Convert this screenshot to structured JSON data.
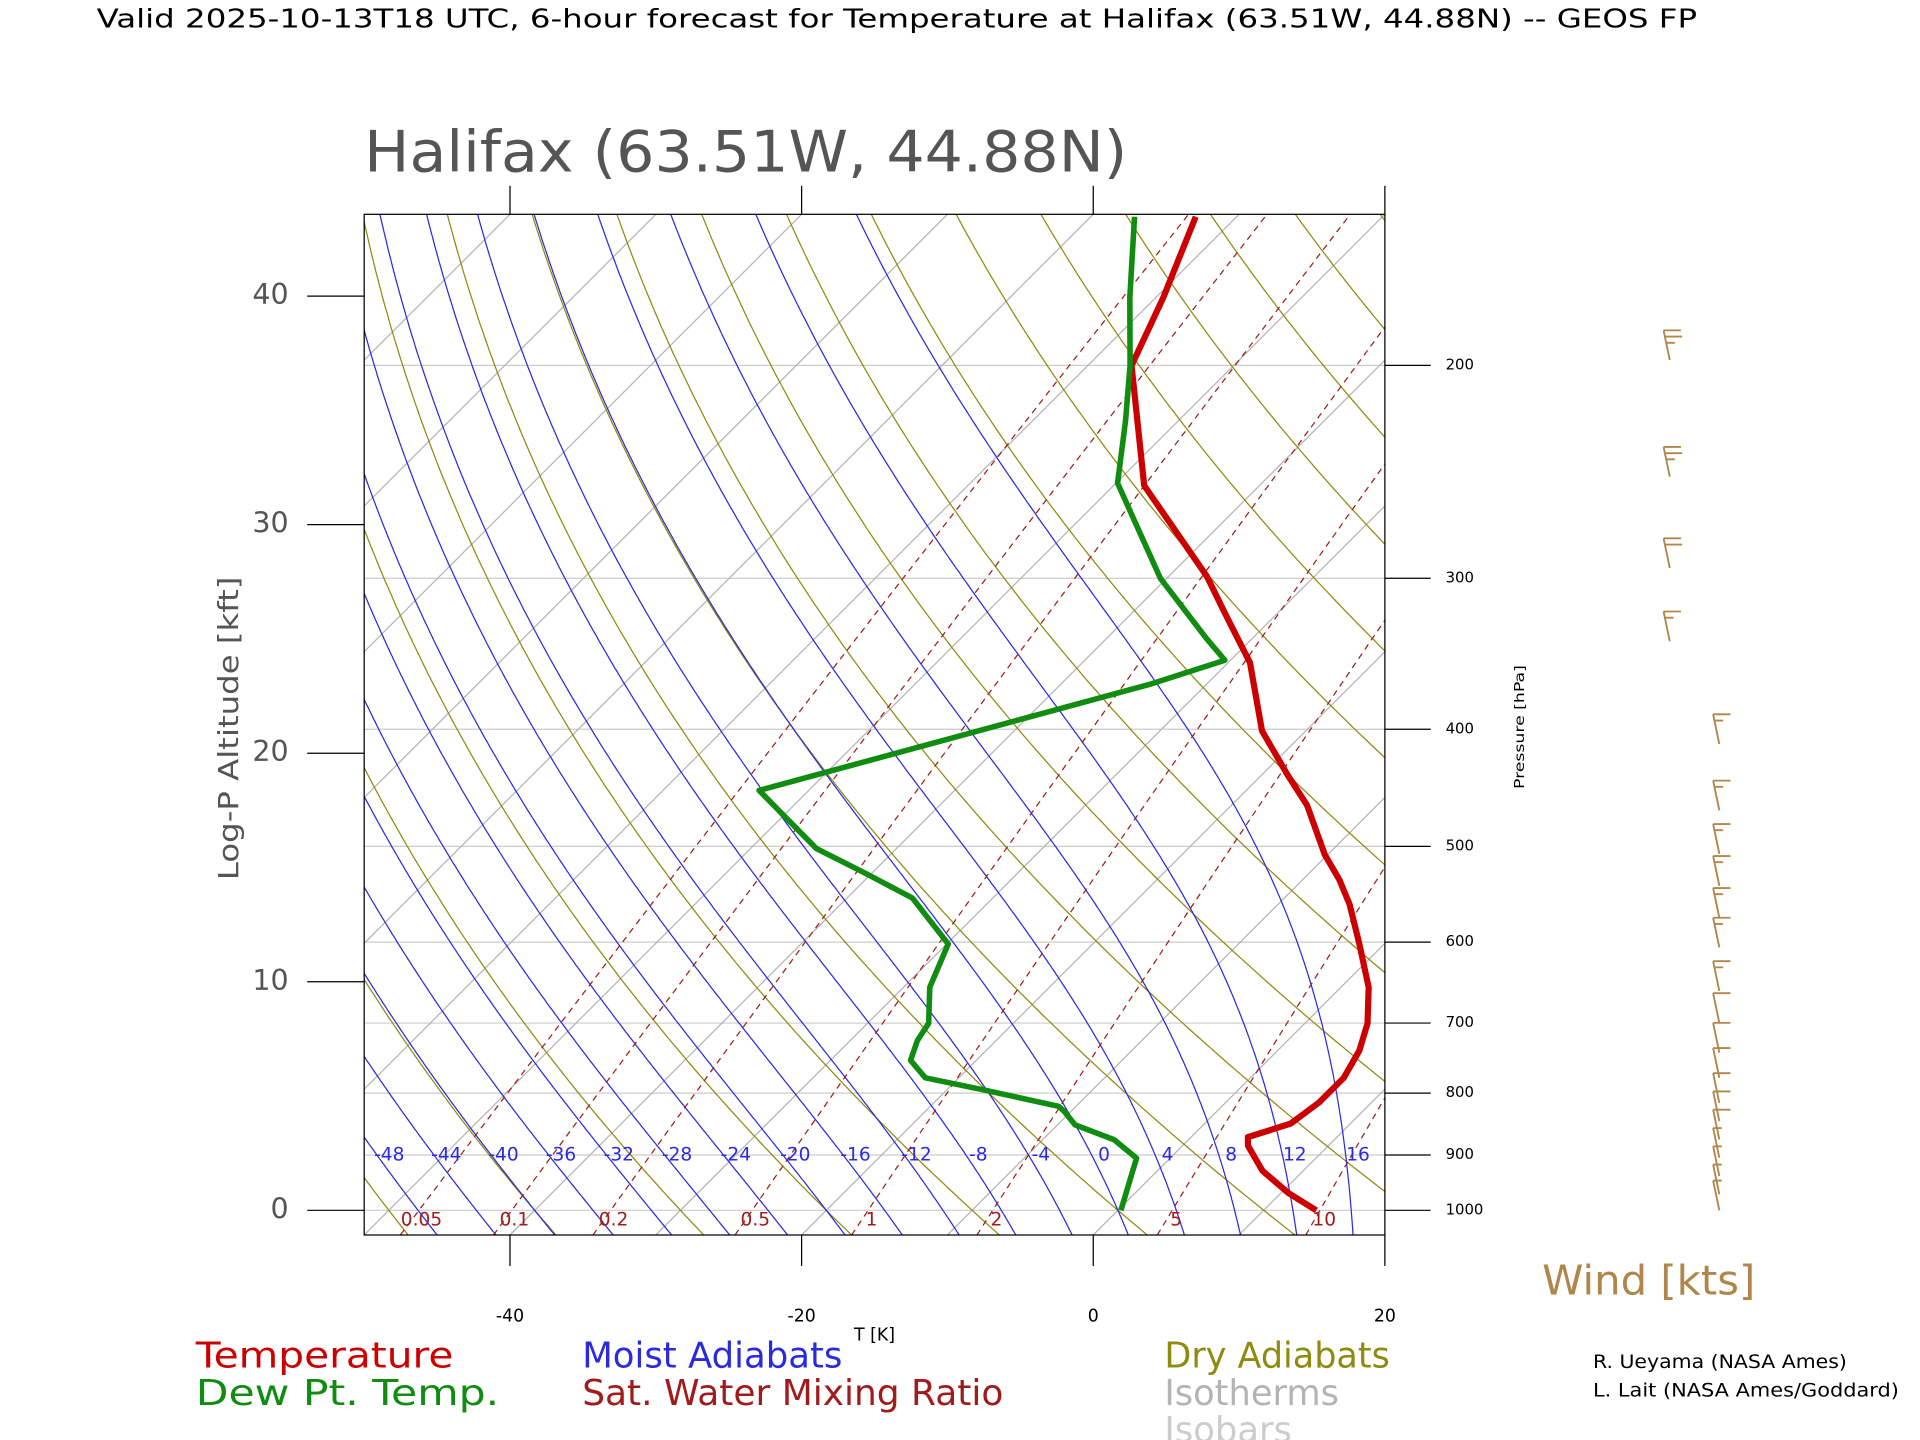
{
  "chart_data": {
    "type": "skewt",
    "title": "Valid 2025-10-13T18 UTC, 6-hour forecast for Temperature at Halifax (63.51W, 44.88N) -- GEOS FP",
    "subtitle": "Halifax (63.51W, 44.88N)",
    "y_label": "Log-P Altitude [kft]",
    "x_label": "T [K]",
    "y2_label": "Pressure [hPa]",
    "xlim": [
      -50,
      20
    ],
    "xticks": [
      -40,
      -20,
      0,
      20
    ],
    "ylim": [
      -1.08,
      43.58
    ],
    "yticks": [
      0,
      10,
      20,
      30,
      40
    ],
    "y2ticks": [
      1000,
      900,
      800,
      700,
      600,
      500,
      400,
      300,
      200
    ],
    "series": [
      {
        "name": "Temperature",
        "color": "#cc0000",
        "altitude": [
          0,
          0.76,
          1.73,
          2.82,
          3.2,
          3.79,
          4.72,
          5.8,
          6.99,
          8.18,
          9.76,
          11.65,
          13.39,
          14.47,
          15.56,
          17.72,
          19.08,
          20.98,
          23.96,
          26.12,
          27.75,
          31.71,
          36.96,
          39.95,
          43.47
        ],
        "values": [
          13.6,
          10.5,
          7.2,
          4.5,
          3.9,
          5.9,
          6.4,
          6.4,
          5.6,
          4.3,
          1.9,
          -1.7,
          -5.1,
          -7.5,
          -10.2,
          -14.8,
          -18.3,
          -23,
          -28.5,
          -33.6,
          -37.4,
          -47.9,
          -57,
          -59.5,
          -62.8
        ]
      },
      {
        "name": "Dew Pt. Temp.",
        "color": "#108c10",
        "altitude": [
          0,
          1.19,
          2.28,
          3.09,
          3.74,
          4.34,
          4.55,
          5.26,
          5.8,
          6.56,
          7.43,
          8.18,
          9.76,
          11.65,
          13.66,
          14.74,
          15.83,
          18.37,
          23.04,
          24.07,
          25.04,
          27.64,
          30.19,
          31.82,
          34.53,
          36.96,
          39.95,
          43.47
        ],
        "values": [
          0.2,
          -1.1,
          -2.3,
          -5.1,
          -8.8,
          -10.5,
          -11.2,
          -17.4,
          -22.3,
          -24.5,
          -25.4,
          -25.8,
          -28.2,
          -29.9,
          -35.5,
          -40.4,
          -45.5,
          -53.4,
          -33.8,
          -30.4,
          -33.2,
          -40.4,
          -46.2,
          -49.9,
          -53.6,
          -57.1,
          -61.8,
          -67
        ]
      }
    ],
    "reference_lines": [
      {
        "name": "Moist Adiabats",
        "color": "#2a2ae0",
        "labels": [
          -48,
          -44,
          -40,
          -36,
          -32,
          -28,
          -24,
          -20,
          -16,
          -12,
          -8,
          -4,
          0,
          4,
          8,
          12,
          16
        ]
      },
      {
        "name": "Sat. Water Mixing Ratio",
        "color": "#a01c1c",
        "labels": [
          0.05,
          0.1,
          0.2,
          0.5,
          1,
          2,
          5,
          10
        ]
      },
      {
        "name": "Dry Adiabats",
        "color": "#8f8a10"
      },
      {
        "name": "Isotherms",
        "color": "#b4b4b4"
      },
      {
        "name": "Isobars",
        "color": "#cccccc"
      }
    ],
    "wind": {
      "name": "Wind [kts]",
      "color": "#b0864a",
      "altitude": [
        0,
        0.7,
        1.5,
        2.3,
        3.1,
        3.9,
        4.7,
        5.8,
        6.9,
        8.2,
        9.6,
        11.5,
        12.8,
        14.2,
        15.6,
        17.5,
        20.4,
        24.9,
        28.1,
        32.1,
        37.2
      ],
      "speed": [
        5,
        5,
        5,
        5,
        10,
        10,
        10,
        10,
        10,
        10,
        15,
        15,
        15,
        15,
        15,
        15,
        15,
        15,
        20,
        25,
        25
      ]
    },
    "credits": [
      "R. Ueyama (NASA Ames)",
      "L. Lait (NASA Ames/Goddard)"
    ]
  }
}
